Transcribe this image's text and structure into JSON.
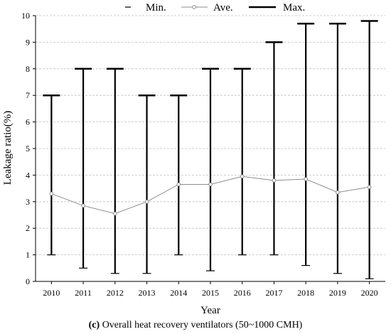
{
  "chart_data": {
    "type": "line",
    "xlabel": "Year",
    "ylabel": "Leakage ratio(%)",
    "ylim": [
      0,
      10
    ],
    "yticks": [
      0,
      1,
      2,
      3,
      4,
      5,
      6,
      7,
      8,
      9,
      10
    ],
    "grid": "horizontal-dashed",
    "legend": {
      "placement": "top",
      "entries": [
        "Min.",
        "Ave.",
        "Max."
      ]
    },
    "categories": [
      "2010",
      "2011",
      "2012",
      "2013",
      "2014",
      "2015",
      "2016",
      "2017",
      "2018",
      "2019",
      "2020"
    ],
    "series": [
      {
        "name": "Min.",
        "values": [
          1.0,
          0.5,
          0.3,
          0.3,
          1.0,
          0.4,
          1.0,
          1.0,
          0.6,
          0.3,
          0.1
        ]
      },
      {
        "name": "Ave.",
        "values": [
          3.3,
          2.85,
          2.55,
          3.0,
          3.65,
          3.65,
          3.95,
          3.8,
          3.85,
          3.35,
          3.55
        ]
      },
      {
        "name": "Max.",
        "values": [
          7.0,
          8.0,
          8.0,
          7.0,
          7.0,
          8.0,
          8.0,
          9.0,
          9.7,
          9.7,
          9.8
        ]
      }
    ],
    "colors": {
      "bars": "#000000",
      "average": "#8c8c8c",
      "grid": "#c0c0c0"
    }
  },
  "caption": {
    "label": "(c)",
    "text": "Overall heat recovery ventilators (50~1000 CMH)"
  }
}
